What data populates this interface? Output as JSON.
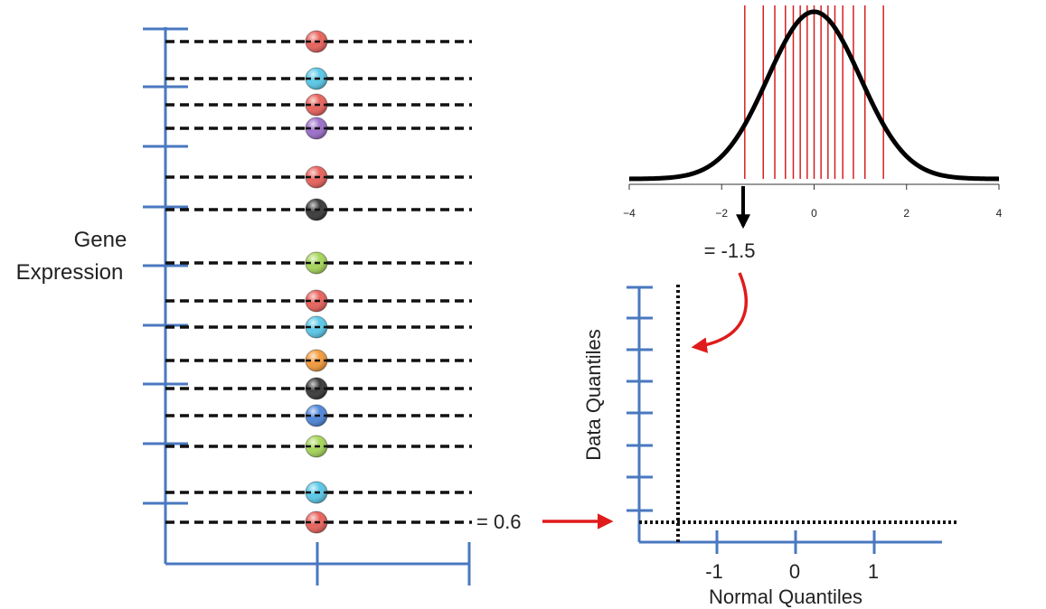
{
  "left_panel": {
    "axis_label_line1": "Gene",
    "axis_label_line2": "Expression",
    "points": [
      {
        "color": "#e8625c"
      },
      {
        "color": "#59c8e8"
      },
      {
        "color": "#e8625c"
      },
      {
        "color": "#9b6fc9"
      },
      {
        "color": "#e8625c"
      },
      {
        "color": "#3a3a3a"
      },
      {
        "color": "#a6d65a"
      },
      {
        "color": "#e8625c"
      },
      {
        "color": "#59c8e8"
      },
      {
        "color": "#f29a3c"
      },
      {
        "color": "#3a3a3a"
      },
      {
        "color": "#4f86d9"
      },
      {
        "color": "#a6d65a"
      },
      {
        "color": "#59c8e8"
      },
      {
        "color": "#e8625c"
      }
    ],
    "value_callout": "= 0.6"
  },
  "normal_curve": {
    "x_ticks": [
      "−4",
      "−2",
      "0",
      "2",
      "4"
    ],
    "xlim": [
      -4,
      4
    ],
    "quantile_lines": [
      -1.5,
      -1.1,
      -0.85,
      -0.62,
      -0.45,
      -0.3,
      -0.15,
      0.0,
      0.15,
      0.3,
      0.45,
      0.62,
      0.85,
      1.1,
      1.5
    ],
    "highlighted_quantile": -1.5,
    "value_callout": "= -1.5",
    "line_color": "#d62020"
  },
  "qq_plot": {
    "ylabel": "Data Quantiles",
    "xlabel": "Normal Quantiles",
    "x_ticks": [
      "-1",
      "0",
      "1"
    ],
    "point_x": -1.5,
    "point_y": 0.6
  },
  "colors": {
    "axis_blue": "#4a78c0",
    "arrow_red": "#e01b1b",
    "arrow_black": "#000000"
  }
}
